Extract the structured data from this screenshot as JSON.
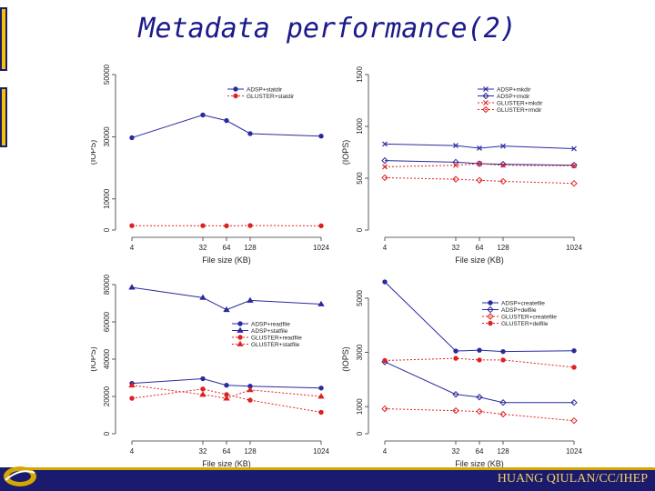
{
  "title": "Metadata performance(2)",
  "footer": "HUANG QIULAN/CC/IHEP",
  "colors": {
    "blue": "#2a2aa0",
    "red": "#e02020",
    "title": "#1a1a8a",
    "band": "#1a1a6e",
    "gold": "#f5c400"
  },
  "chart_data": [
    {
      "type": "line",
      "xlabel": "File size (KB)",
      "ylabel": "(IOPS)",
      "x": [
        4,
        32,
        64,
        128,
        1024
      ],
      "ylim": [
        0,
        50000
      ],
      "yticks": [
        0,
        10000,
        30000,
        50000
      ],
      "legend_position": "top-right",
      "series": [
        {
          "name": "ADSP+statdir",
          "values": [
            29700,
            37000,
            35200,
            31000,
            30200
          ],
          "color": "#2a2aa0",
          "marker": "circle",
          "dash": false
        },
        {
          "name": "GLUSTER+statdir",
          "values": [
            1400,
            1400,
            1350,
            1450,
            1350
          ],
          "color": "#e02020",
          "marker": "circle",
          "dash": true
        }
      ]
    },
    {
      "type": "line",
      "xlabel": "File size (KB)",
      "ylabel": "(IOPS)",
      "x": [
        4,
        32,
        64,
        128,
        1024
      ],
      "ylim": [
        0,
        1500
      ],
      "yticks": [
        0,
        500,
        1000,
        1500
      ],
      "legend_position": "top-right",
      "series": [
        {
          "name": "ADSP+mkdir",
          "values": [
            830,
            815,
            790,
            810,
            785
          ],
          "color": "#2a2aa0",
          "marker": "x",
          "dash": false
        },
        {
          "name": "ADSP+rmdir",
          "values": [
            670,
            655,
            640,
            635,
            625
          ],
          "color": "#2a2aa0",
          "marker": "diamond",
          "dash": false
        },
        {
          "name": "GLUSTER+mkdir",
          "values": [
            610,
            625,
            640,
            625,
            620
          ],
          "color": "#e02020",
          "marker": "x",
          "dash": true
        },
        {
          "name": "GLUSTER+rmdir",
          "values": [
            505,
            490,
            480,
            470,
            450
          ],
          "color": "#e02020",
          "marker": "diamond",
          "dash": true
        }
      ]
    },
    {
      "type": "line",
      "xlabel": "File size (KB)",
      "ylabel": "(IOPS)",
      "x": [
        4,
        32,
        64,
        128,
        1024
      ],
      "ylim": [
        0,
        80000
      ],
      "yticks": [
        0,
        20000,
        40000,
        60000,
        80000
      ],
      "legend_position": "right",
      "series": [
        {
          "name": "ADSP+readfile",
          "values": [
            27000,
            29500,
            26000,
            25500,
            24500
          ],
          "color": "#2a2aa0",
          "marker": "circle",
          "dash": false
        },
        {
          "name": "ADSP+statfile",
          "values": [
            78500,
            73000,
            66500,
            71500,
            69500
          ],
          "color": "#2a2aa0",
          "marker": "triangle",
          "dash": false
        },
        {
          "name": "GLUSTER+readfile",
          "values": [
            19000,
            24000,
            21000,
            18000,
            11500
          ],
          "color": "#e02020",
          "marker": "circle",
          "dash": true
        },
        {
          "name": "GLUSTER+statfile",
          "values": [
            26000,
            21000,
            19000,
            23500,
            20000
          ],
          "color": "#e02020",
          "marker": "triangle",
          "dash": true
        }
      ]
    },
    {
      "type": "line",
      "xlabel": "File size (KB)",
      "ylabel": "(IOPS)",
      "x": [
        4,
        32,
        64,
        128,
        1024
      ],
      "ylim": [
        0,
        5500
      ],
      "yticks": [
        0,
        1000,
        3000,
        5000
      ],
      "legend_position": "top-right",
      "series": [
        {
          "name": "ADSP+createfile",
          "values": [
            5600,
            3050,
            3080,
            3030,
            3060
          ],
          "color": "#2a2aa0",
          "marker": "circle",
          "dash": false
        },
        {
          "name": "ADSP+delfile",
          "values": [
            2650,
            1450,
            1350,
            1150,
            1150
          ],
          "color": "#2a2aa0",
          "marker": "diamond",
          "dash": false
        },
        {
          "name": "GLUSTER+createfile",
          "values": [
            920,
            850,
            820,
            720,
            480
          ],
          "color": "#e02020",
          "marker": "diamond",
          "dash": true
        },
        {
          "name": "GLUSTER+delfile",
          "values": [
            2700,
            2780,
            2720,
            2720,
            2450
          ],
          "color": "#e02020",
          "marker": "circle",
          "dash": true
        }
      ]
    }
  ]
}
